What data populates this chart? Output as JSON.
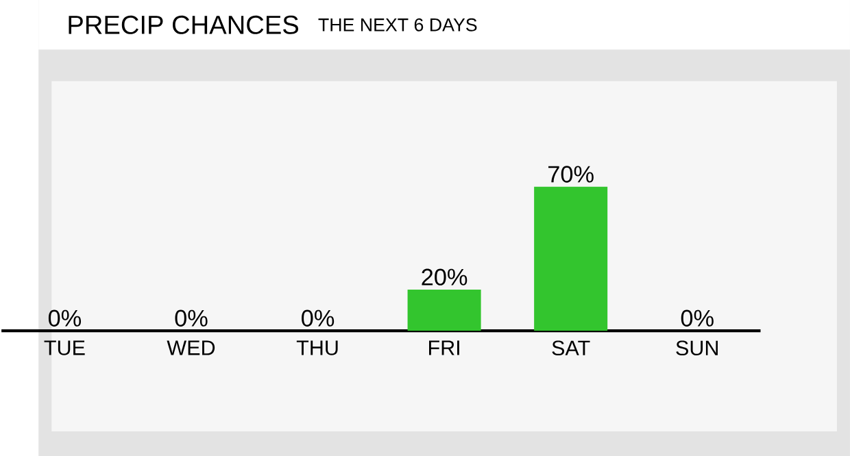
{
  "chart_data": {
    "type": "bar",
    "title": "PRECIP CHANCES",
    "subtitle": "THE NEXT 6 DAYS",
    "categories": [
      "TUE",
      "WED",
      "THU",
      "FRI",
      "SAT",
      "SUN"
    ],
    "values": [
      0,
      0,
      0,
      20,
      70,
      0
    ],
    "value_labels": [
      "0%",
      "0%",
      "0%",
      "20%",
      "70%",
      "0%"
    ],
    "color": "#33c52e"
  }
}
